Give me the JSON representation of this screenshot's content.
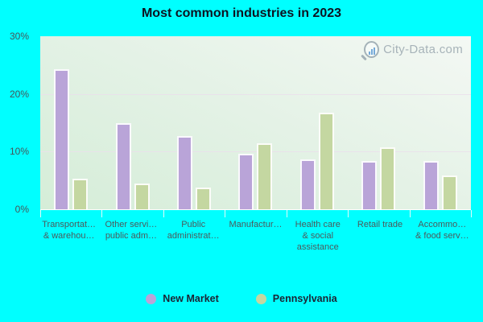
{
  "title": "Most common industries in 2023",
  "watermark": {
    "text": "City-Data.com"
  },
  "colors": {
    "page_background": "#00ffff",
    "new_market": "#b9a4d8",
    "pennsylvania": "#c4d7a1",
    "gridline": "#eadfeb",
    "axis_text": "#46565a",
    "x_label_text": "#4c5a5c",
    "title_text": "#0d1321",
    "legend_text": "#1b2333",
    "watermark_text": "#a7b3b9"
  },
  "y_axis": {
    "tick_labels": [
      "30%",
      "20%",
      "10%",
      "0%"
    ],
    "tick_values": [
      30,
      20,
      10,
      0
    ],
    "max": 30,
    "gridline_values": [
      20,
      10
    ]
  },
  "legend": {
    "items": [
      {
        "label": "New Market",
        "color": "#b9a4d8"
      },
      {
        "label": "Pennsylvania",
        "color": "#c4d7a1"
      }
    ]
  },
  "chart_data": {
    "type": "bar",
    "title": "Most common industries in 2023",
    "categories": [
      "Transportat… & warehou…",
      "Other servi… public adm…",
      "Public administrat…",
      "Manufactur…",
      "Health care & social assistance",
      "Retail trade",
      "Accommo… & food serv…"
    ],
    "categories_display": [
      [
        "Transportat…",
        "& warehou…"
      ],
      [
        "Other servi…",
        "public adm…"
      ],
      [
        "Public",
        "administrat…"
      ],
      [
        "Manufactur…"
      ],
      [
        "Health care",
        "& social",
        "assistance"
      ],
      [
        "Retail trade"
      ],
      [
        "Accommo…",
        "& food serv…"
      ]
    ],
    "series": [
      {
        "name": "New Market",
        "color": "#b9a4d8",
        "values": [
          24.3,
          15.0,
          12.7,
          9.6,
          8.7,
          8.4,
          8.4
        ]
      },
      {
        "name": "Pennsylvania",
        "color": "#c4d7a1",
        "values": [
          5.3,
          4.5,
          3.8,
          11.4,
          16.7,
          10.8,
          5.9
        ]
      }
    ],
    "xlabel": "",
    "ylabel": "",
    "ylim": [
      0,
      30
    ],
    "grid": true,
    "legend_position": "bottom"
  }
}
